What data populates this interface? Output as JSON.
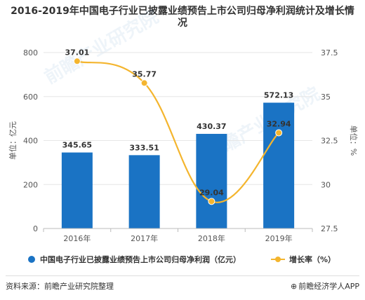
{
  "title": "2016-2019年中国电子行业已披露业绩预告上市公司归母净利润统计及增长情况",
  "footer": {
    "source": "资料来源：前瞻产业研究院整理",
    "brand": "前瞻经济学人APP"
  },
  "watermark_text": "前瞻产业研究院",
  "colors": {
    "bar": "#1a73c4",
    "line": "#f4b52e",
    "axis_text": "#555555"
  },
  "chart_data": {
    "type": "bar",
    "categories": [
      "2016年",
      "2017年",
      "2018年",
      "2019年"
    ],
    "series": [
      {
        "name": "中国电子行业已披露业绩预告上市公司归母净利润（亿元）",
        "type": "bar",
        "axis": "left",
        "values": [
          345.65,
          333.51,
          430.37,
          572.13
        ]
      },
      {
        "name": "增长率（%）",
        "type": "line",
        "axis": "right",
        "values": [
          37.01,
          35.77,
          29.04,
          32.94
        ]
      }
    ],
    "ylabel": "单位：亿元",
    "y2label": "单位：%",
    "ylim": [
      0,
      800
    ],
    "y2lim": [
      27.5,
      37.5
    ],
    "yticks": [
      "0",
      "200",
      "400",
      "600",
      "800"
    ],
    "y2ticks": [
      "27.5",
      "30",
      "32.5",
      "35",
      "37.5"
    ],
    "legend_position": "bottom"
  }
}
